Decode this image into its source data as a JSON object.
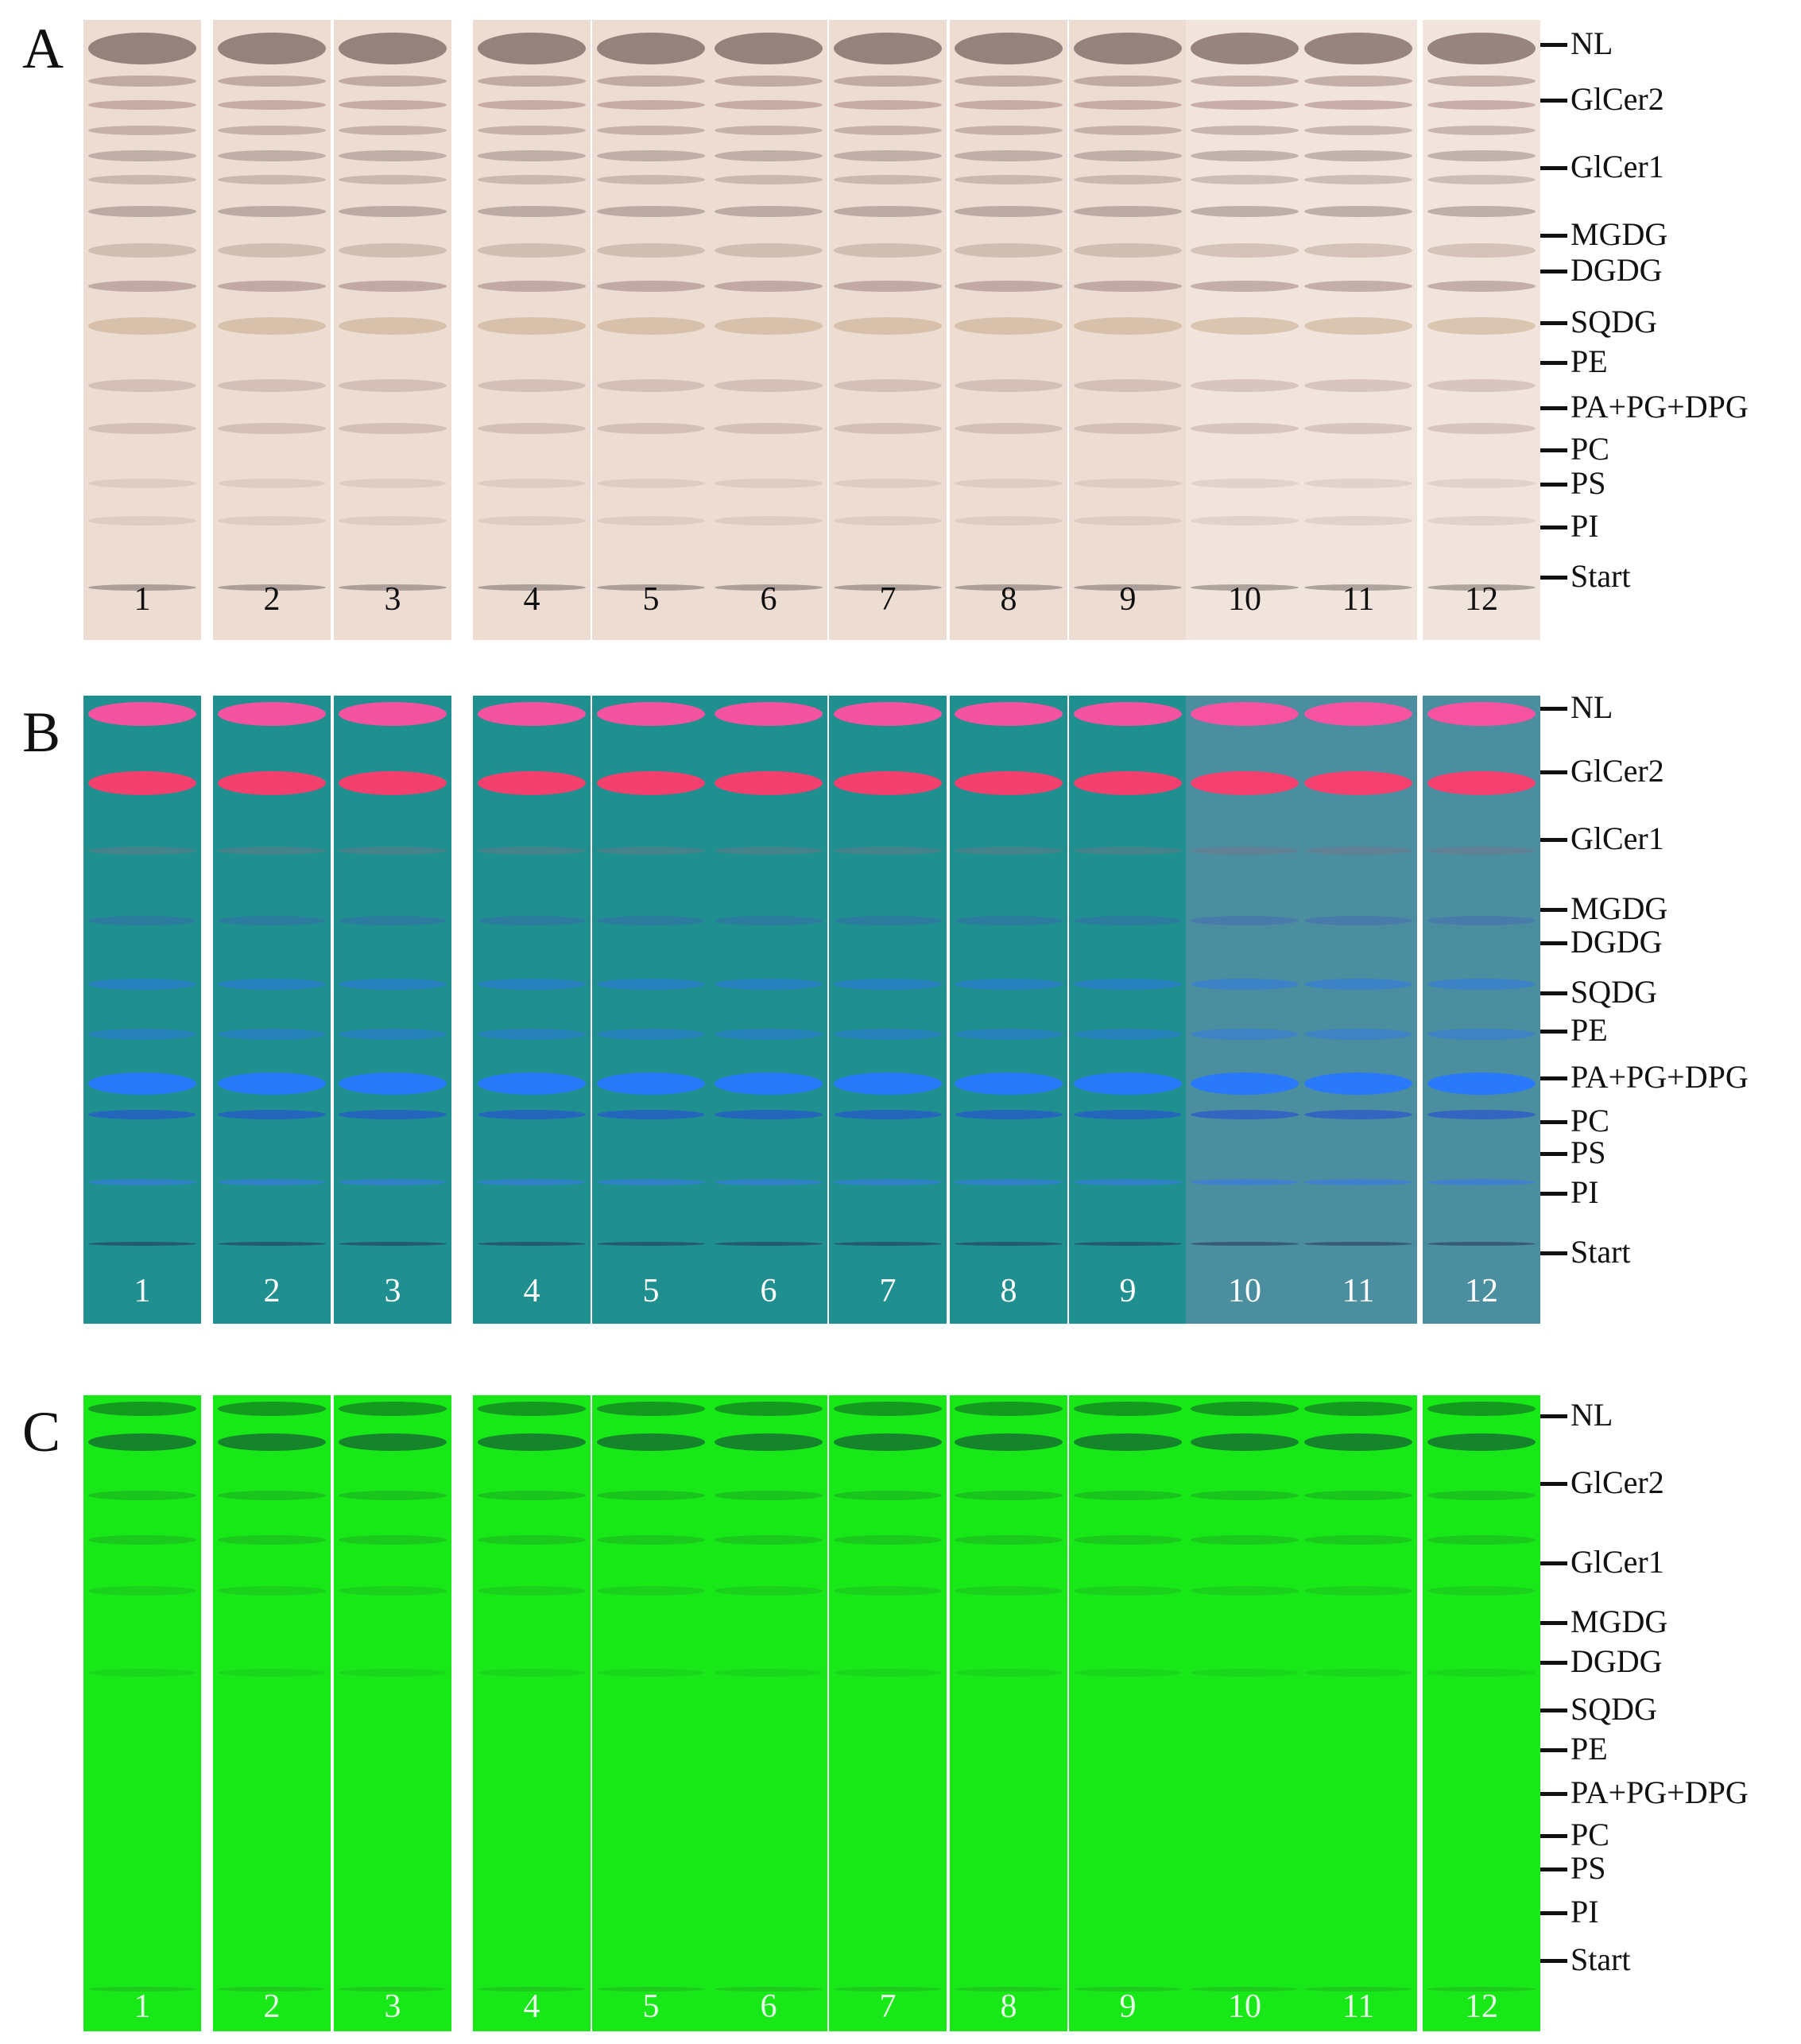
{
  "panels": [
    {
      "letter": "A",
      "stain": "charring",
      "lane_color": "#ecdcd2",
      "label_color": "#111111",
      "lane_labels": [
        "1",
        "2",
        "3",
        "4",
        "5",
        "6",
        "7",
        "8",
        "9",
        "10",
        "11",
        "12"
      ],
      "markers": [
        "NL",
        "GlCer2",
        "GlCer1",
        "MGDG",
        "DGDG",
        "SQDG",
        "PE",
        "PA+PG+DPG",
        "PC",
        "PS",
        "PI",
        "Start"
      ]
    },
    {
      "letter": "B",
      "stain": "fluorescent",
      "lane_color": "#1f8f90",
      "label_color": "#ffffff",
      "lane_labels": [
        "1",
        "2",
        "3",
        "4",
        "5",
        "6",
        "7",
        "8",
        "9",
        "10",
        "11",
        "12"
      ],
      "markers": [
        "NL",
        "GlCer2",
        "GlCer1",
        "MGDG",
        "DGDG",
        "SQDG",
        "PE",
        "PA+PG+DPG",
        "PC",
        "PS",
        "PI",
        "Start"
      ]
    },
    {
      "letter": "C",
      "stain": "uv",
      "lane_color": "#18e818",
      "label_color": "#e8ffe8",
      "lane_labels": [
        "1",
        "2",
        "3",
        "4",
        "5",
        "6",
        "7",
        "8",
        "9",
        "10",
        "11",
        "12"
      ],
      "markers": [
        "NL",
        "GlCer2",
        "GlCer1",
        "MGDG",
        "DGDG",
        "SQDG",
        "PE",
        "PA+PG+DPG",
        "PC",
        "PS",
        "PI",
        "Start"
      ]
    }
  ]
}
